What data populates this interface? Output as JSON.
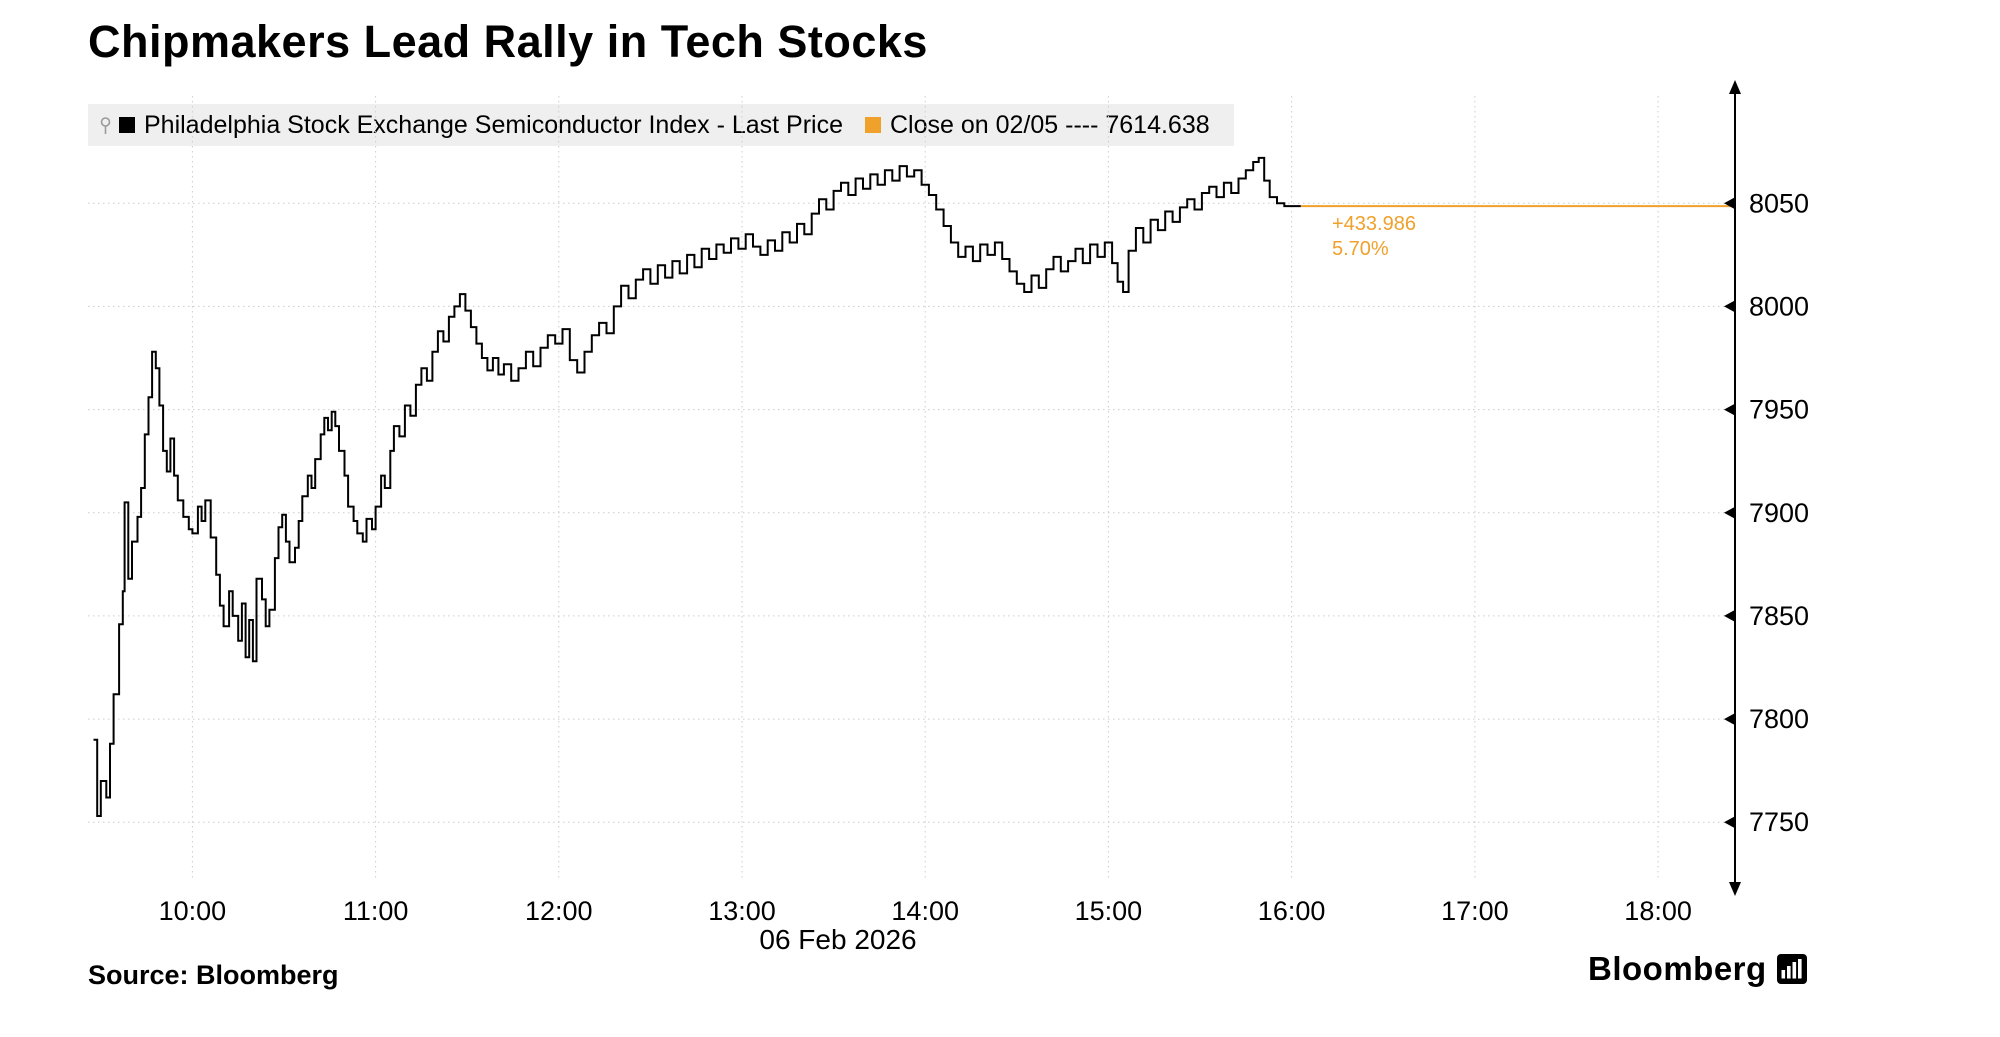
{
  "title": "Chipmakers Lead Rally in Tech Stocks",
  "legend": {
    "series": [
      {
        "label": "Philadelphia Stock Exchange Semiconductor Index - Last Price",
        "swatch_color": "#000000"
      },
      {
        "label": "Close on 02/05 ---- 7614.638",
        "swatch_color": "#EFA12B"
      }
    ]
  },
  "annotation": {
    "change": "+433.986",
    "change_pct": "5.70%"
  },
  "x_axis": {
    "date_label": "06 Feb 2026"
  },
  "footer": {
    "source_label": "Source:  Bloomberg",
    "brand": "Bloomberg"
  },
  "colors": {
    "series_line": "#000000",
    "close_line": "#EFA12B",
    "annotation_text": "#EFA12B",
    "grid": "#cccccc",
    "legend_background": "#efefef",
    "axis": "#000000"
  },
  "chart_data": {
    "type": "line",
    "title": "Chipmakers Lead Rally in Tech Stocks",
    "x_unit": "hour_of_day_decimal",
    "date_label": "06 Feb 2026",
    "grid": "dotted",
    "legend_position": "top-left",
    "last_price": 8048.624,
    "prev_close": 7614.638,
    "change": 433.986,
    "change_pct": "5.70%",
    "xlim": [
      9.43,
      18.42
    ],
    "ylim": [
      7722,
      8102
    ],
    "y_ticks": [
      7750,
      7800,
      7850,
      7900,
      7950,
      8000,
      8050
    ],
    "x_ticks": [
      {
        "hour": 10,
        "label": "10:00"
      },
      {
        "hour": 11,
        "label": "11:00"
      },
      {
        "hour": 12,
        "label": "12:00"
      },
      {
        "hour": 13,
        "label": "13:00"
      },
      {
        "hour": 14,
        "label": "14:00"
      },
      {
        "hour": 15,
        "label": "15:00"
      },
      {
        "hour": 16,
        "label": "16:00"
      },
      {
        "hour": 17,
        "label": "17:00"
      },
      {
        "hour": 18,
        "label": "18:00"
      }
    ],
    "series": [
      {
        "name": "Philadelphia Stock Exchange Semiconductor Index - Last Price",
        "color": "#000000",
        "points": [
          [
            9.46,
            7790
          ],
          [
            9.48,
            7753
          ],
          [
            9.5,
            7770
          ],
          [
            9.53,
            7762
          ],
          [
            9.55,
            7788
          ],
          [
            9.57,
            7812
          ],
          [
            9.6,
            7846
          ],
          [
            9.62,
            7862
          ],
          [
            9.63,
            7905
          ],
          [
            9.65,
            7868
          ],
          [
            9.67,
            7886
          ],
          [
            9.7,
            7898
          ],
          [
            9.72,
            7912
          ],
          [
            9.74,
            7938
          ],
          [
            9.76,
            7956
          ],
          [
            9.78,
            7978
          ],
          [
            9.8,
            7970
          ],
          [
            9.82,
            7952
          ],
          [
            9.84,
            7930
          ],
          [
            9.86,
            7920
          ],
          [
            9.88,
            7936
          ],
          [
            9.9,
            7918
          ],
          [
            9.92,
            7906
          ],
          [
            9.95,
            7898
          ],
          [
            9.98,
            7892
          ],
          [
            10.0,
            7890
          ],
          [
            10.03,
            7903
          ],
          [
            10.05,
            7896
          ],
          [
            10.07,
            7906
          ],
          [
            10.1,
            7888
          ],
          [
            10.13,
            7870
          ],
          [
            10.15,
            7855
          ],
          [
            10.17,
            7845
          ],
          [
            10.2,
            7862
          ],
          [
            10.22,
            7850
          ],
          [
            10.25,
            7838
          ],
          [
            10.27,
            7856
          ],
          [
            10.29,
            7830
          ],
          [
            10.31,
            7848
          ],
          [
            10.33,
            7828
          ],
          [
            10.35,
            7868
          ],
          [
            10.38,
            7858
          ],
          [
            10.4,
            7845
          ],
          [
            10.42,
            7853
          ],
          [
            10.45,
            7878
          ],
          [
            10.47,
            7893
          ],
          [
            10.49,
            7899
          ],
          [
            10.51,
            7886
          ],
          [
            10.53,
            7876
          ],
          [
            10.56,
            7883
          ],
          [
            10.58,
            7896
          ],
          [
            10.6,
            7908
          ],
          [
            10.63,
            7918
          ],
          [
            10.65,
            7912
          ],
          [
            10.67,
            7926
          ],
          [
            10.7,
            7938
          ],
          [
            10.72,
            7946
          ],
          [
            10.74,
            7940
          ],
          [
            10.76,
            7949
          ],
          [
            10.78,
            7942
          ],
          [
            10.8,
            7930
          ],
          [
            10.83,
            7918
          ],
          [
            10.85,
            7903
          ],
          [
            10.88,
            7896
          ],
          [
            10.9,
            7890
          ],
          [
            10.93,
            7886
          ],
          [
            10.95,
            7897
          ],
          [
            10.98,
            7892
          ],
          [
            11.0,
            7903
          ],
          [
            11.03,
            7918
          ],
          [
            11.05,
            7912
          ],
          [
            11.08,
            7930
          ],
          [
            11.1,
            7942
          ],
          [
            11.13,
            7937
          ],
          [
            11.16,
            7952
          ],
          [
            11.19,
            7947
          ],
          [
            11.22,
            7962
          ],
          [
            11.25,
            7970
          ],
          [
            11.28,
            7964
          ],
          [
            11.31,
            7978
          ],
          [
            11.34,
            7988
          ],
          [
            11.37,
            7983
          ],
          [
            11.4,
            7995
          ],
          [
            11.43,
            8000
          ],
          [
            11.46,
            8006
          ],
          [
            11.49,
            7998
          ],
          [
            11.52,
            7990
          ],
          [
            11.55,
            7982
          ],
          [
            11.58,
            7975
          ],
          [
            11.61,
            7969
          ],
          [
            11.64,
            7975
          ],
          [
            11.67,
            7967
          ],
          [
            11.7,
            7972
          ],
          [
            11.74,
            7964
          ],
          [
            11.78,
            7970
          ],
          [
            11.82,
            7978
          ],
          [
            11.86,
            7971
          ],
          [
            11.9,
            7980
          ],
          [
            11.94,
            7986
          ],
          [
            11.98,
            7982
          ],
          [
            12.02,
            7989
          ],
          [
            12.06,
            7974
          ],
          [
            12.1,
            7968
          ],
          [
            12.14,
            7978
          ],
          [
            12.18,
            7986
          ],
          [
            12.22,
            7992
          ],
          [
            12.26,
            7987
          ],
          [
            12.3,
            8000
          ],
          [
            12.34,
            8010
          ],
          [
            12.38,
            8004
          ],
          [
            12.42,
            8013
          ],
          [
            12.46,
            8018
          ],
          [
            12.5,
            8011
          ],
          [
            12.54,
            8020
          ],
          [
            12.58,
            8014
          ],
          [
            12.62,
            8022
          ],
          [
            12.66,
            8016
          ],
          [
            12.7,
            8025
          ],
          [
            12.74,
            8019
          ],
          [
            12.78,
            8028
          ],
          [
            12.82,
            8023
          ],
          [
            12.86,
            8030
          ],
          [
            12.9,
            8026
          ],
          [
            12.94,
            8033
          ],
          [
            12.98,
            8028
          ],
          [
            13.02,
            8035
          ],
          [
            13.06,
            8029
          ],
          [
            13.1,
            8025
          ],
          [
            13.14,
            8032
          ],
          [
            13.18,
            8027
          ],
          [
            13.22,
            8036
          ],
          [
            13.26,
            8031
          ],
          [
            13.3,
            8040
          ],
          [
            13.34,
            8035
          ],
          [
            13.38,
            8045
          ],
          [
            13.42,
            8052
          ],
          [
            13.46,
            8047
          ],
          [
            13.5,
            8056
          ],
          [
            13.54,
            8060
          ],
          [
            13.58,
            8054
          ],
          [
            13.62,
            8062
          ],
          [
            13.66,
            8057
          ],
          [
            13.7,
            8064
          ],
          [
            13.74,
            8059
          ],
          [
            13.78,
            8066
          ],
          [
            13.82,
            8061
          ],
          [
            13.86,
            8068
          ],
          [
            13.9,
            8063
          ],
          [
            13.94,
            8066
          ],
          [
            13.98,
            8059
          ],
          [
            14.02,
            8054
          ],
          [
            14.06,
            8047
          ],
          [
            14.1,
            8039
          ],
          [
            14.14,
            8031
          ],
          [
            14.18,
            8024
          ],
          [
            14.22,
            8029
          ],
          [
            14.26,
            8022
          ],
          [
            14.3,
            8030
          ],
          [
            14.34,
            8025
          ],
          [
            14.38,
            8031
          ],
          [
            14.42,
            8023
          ],
          [
            14.46,
            8017
          ],
          [
            14.5,
            8011
          ],
          [
            14.54,
            8007
          ],
          [
            14.58,
            8015
          ],
          [
            14.62,
            8009
          ],
          [
            14.66,
            8018
          ],
          [
            14.7,
            8024
          ],
          [
            14.74,
            8017
          ],
          [
            14.78,
            8022
          ],
          [
            14.82,
            8028
          ],
          [
            14.86,
            8021
          ],
          [
            14.9,
            8030
          ],
          [
            14.94,
            8024
          ],
          [
            14.98,
            8031
          ],
          [
            15.02,
            8021
          ],
          [
            15.05,
            8012
          ],
          [
            15.08,
            8007
          ],
          [
            15.11,
            8027
          ],
          [
            15.15,
            8038
          ],
          [
            15.19,
            8031
          ],
          [
            15.23,
            8042
          ],
          [
            15.27,
            8037
          ],
          [
            15.31,
            8046
          ],
          [
            15.35,
            8041
          ],
          [
            15.39,
            8048
          ],
          [
            15.43,
            8052
          ],
          [
            15.47,
            8047
          ],
          [
            15.51,
            8055
          ],
          [
            15.55,
            8058
          ],
          [
            15.59,
            8053
          ],
          [
            15.63,
            8060
          ],
          [
            15.67,
            8055
          ],
          [
            15.71,
            8062
          ],
          [
            15.75,
            8066
          ],
          [
            15.79,
            8070
          ],
          [
            15.82,
            8072
          ],
          [
            15.85,
            8061
          ],
          [
            15.88,
            8053
          ],
          [
            15.92,
            8050
          ],
          [
            15.96,
            8048.62
          ],
          [
            16.05,
            8048.62
          ]
        ]
      },
      {
        "name": "Close on 02/05",
        "type": "reference_line",
        "color": "#EFA12B",
        "value": 7614.638,
        "drawn_at": 8048.624
      }
    ]
  }
}
